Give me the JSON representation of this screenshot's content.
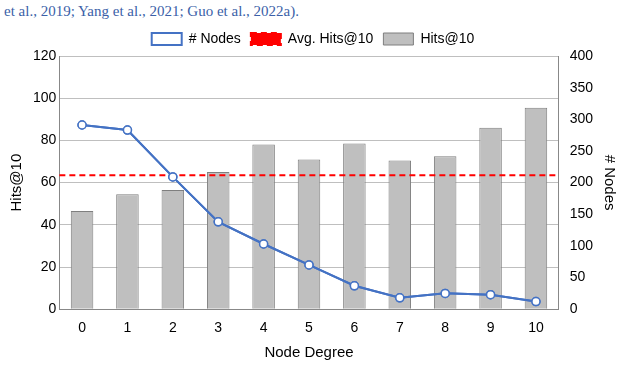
{
  "header_text": "et al., 2019; Yang et al., 2021; Guo et al., 2022a).",
  "chart_data": {
    "type": "bar",
    "x_label": "Node Degree",
    "y_label": "Hits@10",
    "y2_label": "# Nodes",
    "categories": [
      "0",
      "1",
      "2",
      "3",
      "4",
      "5",
      "6",
      "7",
      "8",
      "9",
      "10"
    ],
    "series": [
      {
        "name": "Hits@10",
        "type": "bar",
        "color": "#bfbfbf",
        "values": [
          46.5,
          54.5,
          56.5,
          65,
          78,
          71,
          78.5,
          70.5,
          72.5,
          86,
          95.5
        ]
      },
      {
        "name": "# Nodes",
        "type": "line",
        "axis": "y2",
        "color": "#4472c4",
        "marker": "circle",
        "values": [
          291,
          283,
          209,
          138,
          103,
          70,
          37,
          18,
          25,
          23,
          12
        ]
      }
    ],
    "reference_line": {
      "name": "Avg. Hits@10",
      "value": 63.5,
      "color": "#ff0000",
      "line_style": "dashed"
    },
    "ylim": [
      0,
      120
    ],
    "yticks": [
      0,
      20,
      40,
      60,
      80,
      100,
      120
    ],
    "y2lim": [
      0,
      400
    ],
    "y2ticks": [
      0,
      50,
      100,
      150,
      200,
      250,
      300,
      350,
      400
    ],
    "grid": true,
    "legend": "top"
  }
}
